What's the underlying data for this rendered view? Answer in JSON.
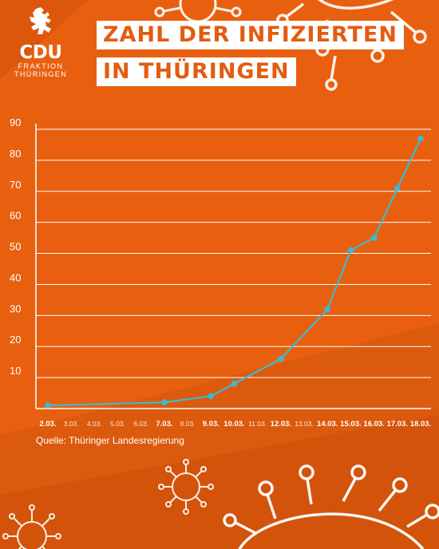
{
  "colors": {
    "bg_orange": "#e8600f",
    "line": "#3fb8d3",
    "title_text": "#e25d10",
    "white": "#ffffff"
  },
  "logo": {
    "name": "CDU",
    "line1": "FRAKTION",
    "line2": "THÜRINGEN",
    "icon": "lion-icon"
  },
  "title": {
    "line1": "ZAHL DER INFIZIERTEN",
    "line2": "IN THÜRINGEN"
  },
  "source": "Quelle: Thüringer Landesregierung",
  "decorations": [
    "virus-icon",
    "virus-icon",
    "virus-icon",
    "virus-icon",
    "virus-icon"
  ],
  "chart_data": {
    "type": "line",
    "title": "ZAHL DER INFIZIERTEN IN THÜRINGEN",
    "ylim": [
      0,
      90
    ],
    "yticks": [
      10,
      20,
      30,
      40,
      50,
      60,
      70,
      80,
      90
    ],
    "grid": true,
    "categories": [
      "2.03.",
      "3.03.",
      "4.03.",
      "5.03.",
      "6.03.",
      "7.03.",
      "8.03.",
      "9.03.",
      "10.03.",
      "11.03.",
      "12.03.",
      "13.03.",
      "14.03.",
      "15.03.",
      "16.03.",
      "17.03.",
      "18.03."
    ],
    "bold_categories": [
      "2.03.",
      "7.03.",
      "9.03.",
      "10.03.",
      "12.03.",
      "14.03.",
      "15.03.",
      "16.03.",
      "17.03.",
      "18.03."
    ],
    "series": [
      {
        "points": [
          {
            "x": "2.03.",
            "y": 1
          },
          {
            "x": "7.03.",
            "y": 2
          },
          {
            "x": "9.03.",
            "y": 4
          },
          {
            "x": "10.03.",
            "y": 8
          },
          {
            "x": "12.03.",
            "y": 16
          },
          {
            "x": "14.03.",
            "y": 32
          },
          {
            "x": "15.03.",
            "y": 51
          },
          {
            "x": "16.03.",
            "y": 55
          },
          {
            "x": "17.03.",
            "y": 71
          },
          {
            "x": "18.03.",
            "y": 87
          }
        ]
      }
    ]
  }
}
